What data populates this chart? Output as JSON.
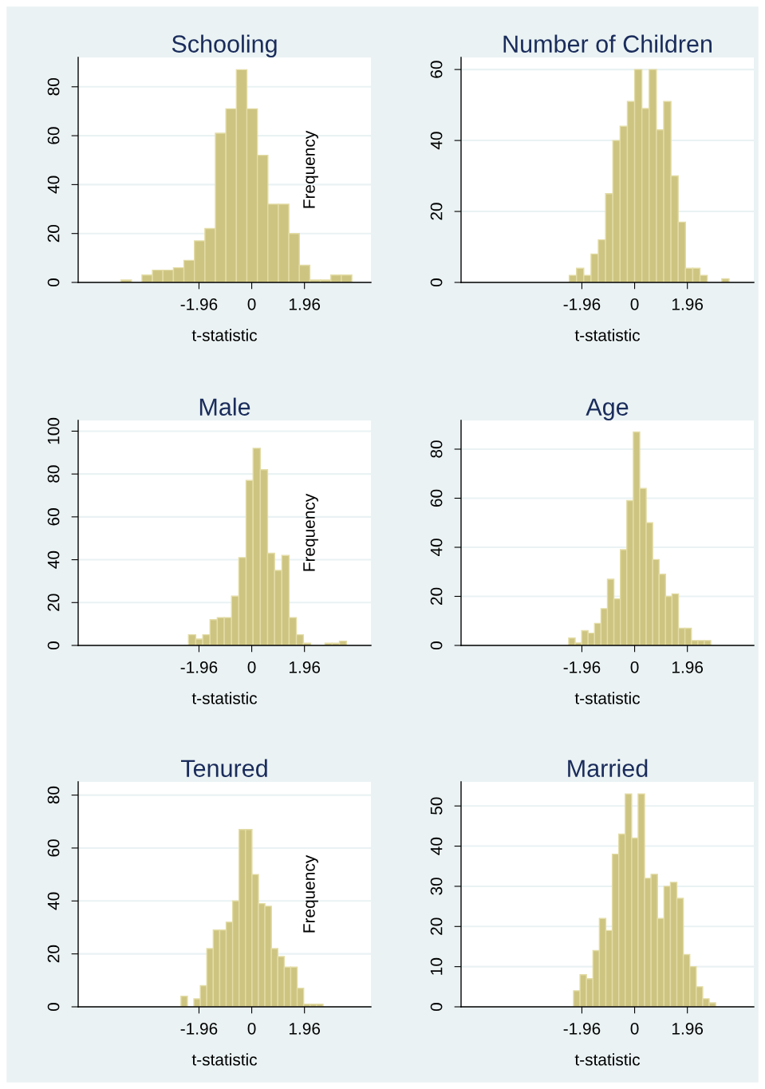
{
  "chart_data": [
    {
      "type": "histogram",
      "title": "Schooling",
      "xlabel": "t-statistic",
      "ylabel": "Frequency",
      "color": "#cdc481",
      "grid": "y",
      "bins": [
        -4.86,
        -4.47,
        -4.08,
        -3.69,
        -3.3,
        -2.91,
        -2.52,
        -2.13,
        -1.74,
        -1.35,
        -0.96,
        -0.57,
        -0.18,
        0.21,
        0.6,
        0.99,
        1.38,
        1.77,
        2.16,
        2.55,
        2.94,
        3.33,
        3.72
      ],
      "values": [
        1,
        0,
        3,
        5,
        5,
        6,
        9,
        17,
        22,
        61,
        71,
        87,
        71,
        52,
        32,
        32,
        20,
        7,
        1,
        1,
        3,
        3
      ],
      "xlim": [
        -6.45,
        4.43
      ],
      "xticks": [
        -1.96,
        0,
        1.96
      ],
      "ylim": [
        0,
        92
      ],
      "yticks": [
        0,
        20,
        40,
        60,
        80
      ]
    },
    {
      "type": "histogram",
      "title": "Number of Children",
      "xlabel": "t-statistic",
      "color": "#cdc481",
      "grid": "y",
      "bins": [
        -2.43,
        -2.16,
        -1.89,
        -1.62,
        -1.35,
        -1.08,
        -0.81,
        -0.54,
        -0.27,
        0,
        0.27,
        0.54,
        0.81,
        1.08,
        1.35,
        1.62,
        1.89,
        2.16,
        2.43,
        2.7,
        2.97,
        3.24,
        3.51
      ],
      "values": [
        2,
        4,
        2,
        8,
        12,
        25,
        40,
        44,
        51,
        60,
        49,
        60,
        43,
        51,
        30,
        17,
        4,
        4,
        2,
        0,
        0,
        1
      ],
      "xlim": [
        -6.45,
        4.43
      ],
      "xticks": [
        -1.96,
        0,
        1.96
      ],
      "ylim": [
        0,
        63.4
      ],
      "yticks": [
        0,
        20,
        40,
        60
      ]
    },
    {
      "type": "histogram",
      "title": "Male",
      "xlabel": "t-statistic",
      "ylabel": "Frequency",
      "color": "#cdc481",
      "grid": "y",
      "bins": [
        -2.35,
        -2.08,
        -1.82,
        -1.55,
        -1.28,
        -1.02,
        -0.75,
        -0.48,
        -0.21,
        0.05,
        0.32,
        0.59,
        0.85,
        1.12,
        1.39,
        1.66,
        1.92,
        2.19,
        2.46,
        2.72,
        2.99,
        3.26,
        3.52
      ],
      "values": [
        5,
        3,
        5,
        12,
        13,
        13,
        23,
        41,
        77,
        92,
        82,
        43,
        35,
        42,
        13,
        5,
        1,
        0,
        0,
        1,
        1,
        2
      ],
      "xlim": [
        -6.45,
        4.43
      ],
      "xticks": [
        -1.96,
        0,
        1.96
      ],
      "ylim": [
        0,
        105
      ],
      "yticks": [
        0,
        20,
        40,
        60,
        80,
        100
      ]
    },
    {
      "type": "histogram",
      "title": "Age",
      "xlabel": "t-statistic",
      "color": "#cdc481",
      "grid": "y",
      "bins": [
        -2.45,
        -2.21,
        -1.97,
        -1.73,
        -1.49,
        -1.25,
        -1.01,
        -0.77,
        -0.53,
        -0.29,
        -0.05,
        0.19,
        0.43,
        0.67,
        0.91,
        1.15,
        1.39,
        1.63,
        1.87,
        2.11,
        2.35,
        2.59,
        2.83
      ],
      "values": [
        3,
        1,
        6,
        5,
        9,
        15,
        27,
        19,
        39,
        59,
        87,
        64,
        50,
        35,
        29,
        20,
        21,
        7,
        7,
        2,
        2,
        2
      ],
      "xlim": [
        -6.45,
        4.43
      ],
      "xticks": [
        -1.96,
        0,
        1.96
      ],
      "ylim": [
        0,
        91.7
      ],
      "yticks": [
        0,
        20,
        40,
        60,
        80
      ]
    },
    {
      "type": "histogram",
      "title": "Tenured",
      "xlabel": "t-statistic",
      "ylabel": "Frequency",
      "color": "#cdc481",
      "grid": "y",
      "bins": [
        -2.63,
        -2.39,
        -2.15,
        -1.91,
        -1.67,
        -1.43,
        -1.19,
        -0.95,
        -0.71,
        -0.47,
        -0.23,
        0.01,
        0.25,
        0.49,
        0.73,
        0.97,
        1.21,
        1.45,
        1.69,
        1.93,
        2.17,
        2.41,
        2.65
      ],
      "values": [
        4,
        0,
        3,
        8,
        22,
        29,
        29,
        32,
        40,
        67,
        67,
        50,
        39,
        38,
        22,
        19,
        15,
        15,
        7,
        1,
        1,
        1
      ],
      "xlim": [
        -6.45,
        4.43
      ],
      "xticks": [
        -1.96,
        0,
        1.96
      ],
      "ylim": [
        0,
        85
      ],
      "yticks": [
        0,
        20,
        40,
        60,
        80
      ]
    },
    {
      "type": "histogram",
      "title": "Married",
      "xlabel": "t-statistic",
      "color": "#cdc481",
      "grid": "y",
      "bins": [
        -2.27,
        -2.03,
        -1.79,
        -1.55,
        -1.31,
        -1.07,
        -0.83,
        -0.59,
        -0.35,
        -0.11,
        0.13,
        0.37,
        0.61,
        0.85,
        1.09,
        1.33,
        1.57,
        1.81,
        2.05,
        2.29,
        2.53,
        2.77,
        3.01
      ],
      "values": [
        4,
        8,
        7,
        14,
        22,
        19,
        38,
        43,
        53,
        42,
        53,
        32,
        33,
        22,
        30,
        31,
        27,
        13,
        10,
        5,
        2,
        1
      ],
      "xlim": [
        -6.45,
        4.43
      ],
      "xticks": [
        -1.96,
        0,
        1.96
      ],
      "ylim": [
        0,
        56
      ],
      "yticks": [
        0,
        10,
        20,
        30,
        40,
        50
      ]
    }
  ]
}
